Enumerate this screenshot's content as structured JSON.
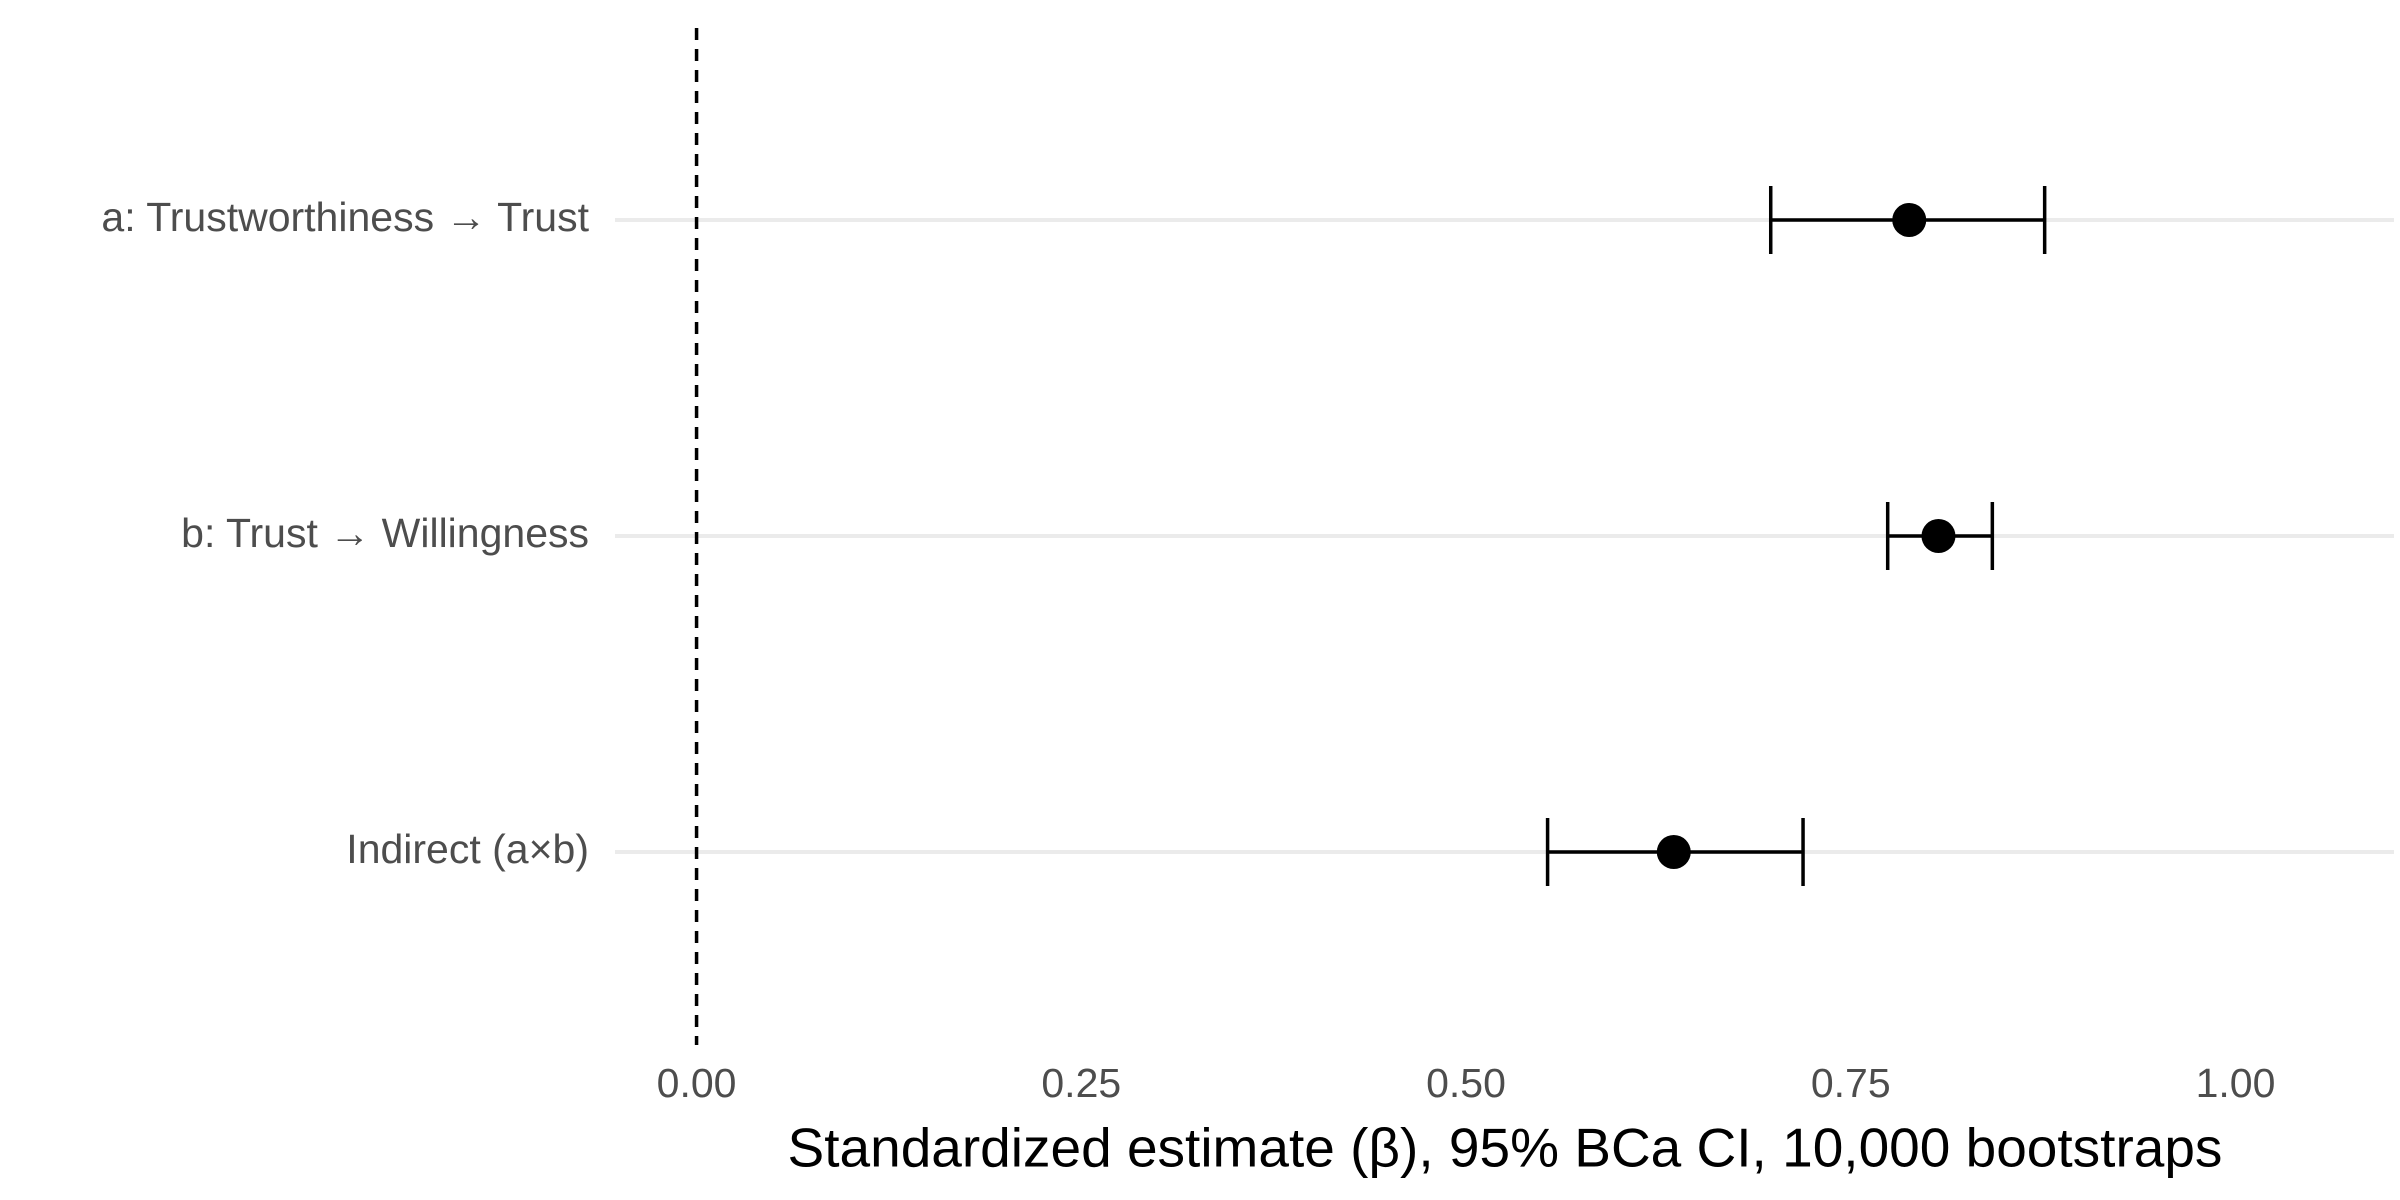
{
  "chart_data": {
    "type": "forest",
    "xlabel": "Standardized estimate (β), 95% BCa CI, 10,000 bootstraps",
    "categories": [
      "a: Trustworthiness → Trust",
      "b: Trust → Willingness",
      "Indirect (a×b)"
    ],
    "values": [
      0.788,
      0.807,
      0.635
    ],
    "lower": [
      0.698,
      0.774,
      0.553
    ],
    "upper": [
      0.876,
      0.842,
      0.719
    ],
    "color": "#000000",
    "xlim": [
      -0.053,
      1.103
    ],
    "xticks": [
      {
        "value": 0,
        "label": "0.00"
      },
      {
        "value": 0.25,
        "label": "0.25"
      },
      {
        "value": 0.5,
        "label": "0.50"
      },
      {
        "value": 0.75,
        "label": "0.75"
      },
      {
        "value": 1,
        "label": "1.00"
      }
    ],
    "reference_line": 0,
    "grid": true
  }
}
